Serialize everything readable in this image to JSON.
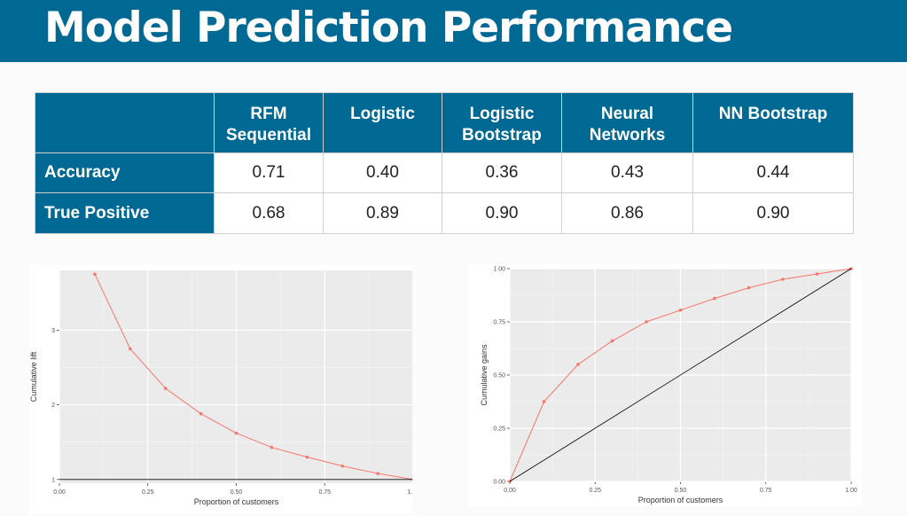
{
  "title": "Model Prediction Performance",
  "table": {
    "columns": [
      "",
      "RFM\nSequential",
      "Logistic",
      "Logistic\nBootstrap",
      "Neural\nNetworks",
      "NN Bootstrap"
    ],
    "rows": [
      {
        "label": "Accuracy",
        "values": [
          "0.71",
          "0.40",
          "0.36",
          "0.43",
          "0.44"
        ]
      },
      {
        "label": "True Positive",
        "values": [
          "0.68",
          "0.89",
          "0.90",
          "0.86",
          "0.90"
        ]
      }
    ]
  },
  "chart_data": [
    {
      "type": "line",
      "xlabel": "Proportion of customers",
      "ylabel": "Cumulative lift",
      "xlim": [
        0,
        1
      ],
      "ylim": [
        0.95,
        3.8
      ],
      "x_ticks": [
        "0.00",
        "0.25",
        "0.50",
        "0.75",
        "1.00"
      ],
      "y_ticks": [
        "1",
        "2",
        "3"
      ],
      "grid": true,
      "series": [
        {
          "x": [
            0.1,
            0.2,
            0.3,
            0.4,
            0.5,
            0.6,
            0.7,
            0.8,
            0.9,
            1.0
          ],
          "values": [
            3.75,
            2.75,
            2.22,
            1.88,
            1.62,
            1.43,
            1.3,
            1.18,
            1.08,
            1.0
          ],
          "color": "#f8766d",
          "points": true
        },
        {
          "x": [
            0,
            1
          ],
          "values": [
            1,
            1
          ],
          "color": "#000000",
          "points": false
        }
      ]
    },
    {
      "type": "line",
      "xlabel": "Proportion of customers",
      "ylabel": "Cumulative gains",
      "xlim": [
        0,
        1
      ],
      "ylim": [
        0,
        1
      ],
      "x_ticks": [
        "0.00",
        "0.25",
        "0.50",
        "0.75",
        "1.00"
      ],
      "y_ticks": [
        "0.00",
        "0.25",
        "0.50",
        "0.75",
        "1.00"
      ],
      "grid": true,
      "series": [
        {
          "x": [
            0,
            0.1,
            0.2,
            0.3,
            0.4,
            0.5,
            0.6,
            0.7,
            0.8,
            0.9,
            1.0
          ],
          "values": [
            0,
            0.375,
            0.55,
            0.66,
            0.75,
            0.805,
            0.86,
            0.91,
            0.95,
            0.975,
            1.0
          ],
          "color": "#f8766d",
          "points": true
        },
        {
          "x": [
            0,
            1
          ],
          "values": [
            0,
            1
          ],
          "color": "#000000",
          "points": false
        }
      ]
    }
  ]
}
